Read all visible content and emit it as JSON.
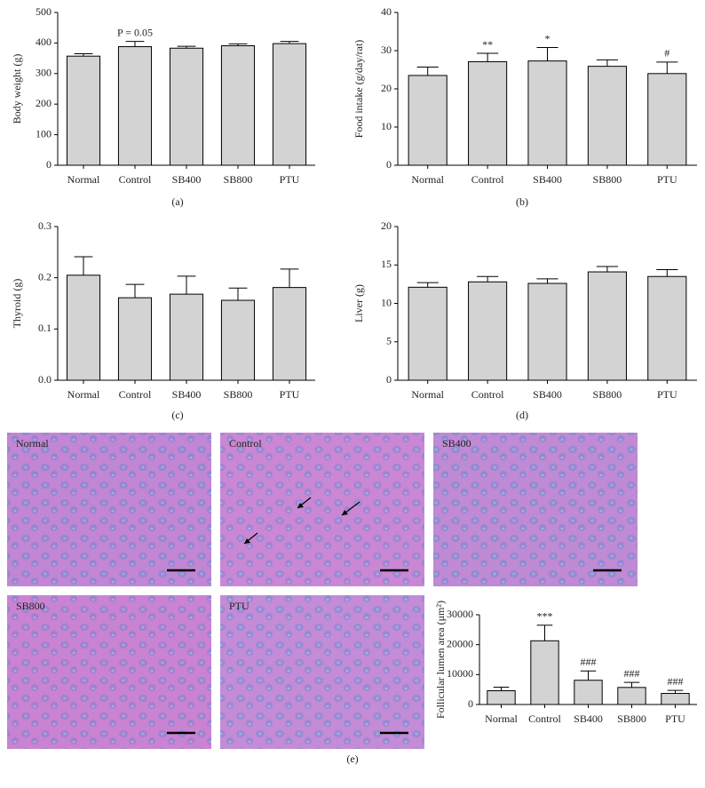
{
  "chart_data": [
    {
      "type": "bar",
      "panel": "(a)",
      "ylabel": "Body weight (g)",
      "categories": [
        "Normal",
        "Control",
        "SB400",
        "SB800",
        "PTU"
      ],
      "values": [
        357,
        388,
        383,
        391,
        398
      ],
      "errors": [
        8,
        17,
        6,
        6,
        7
      ],
      "annotations": [
        null,
        "P = 0.05",
        null,
        null,
        null
      ],
      "color": "#d3d3d3",
      "ylim": [
        0,
        500
      ],
      "yticks": [
        0,
        100,
        200,
        300,
        400,
        500
      ]
    },
    {
      "type": "bar",
      "panel": "(b)",
      "ylabel": "Food intake (g/day/rat)",
      "categories": [
        "Normal",
        "Control",
        "SB400",
        "SB800",
        "PTU"
      ],
      "values": [
        23.5,
        27.1,
        27.3,
        25.9,
        24.0
      ],
      "errors": [
        2.2,
        2.2,
        3.5,
        1.7,
        3.0
      ],
      "annotations": [
        null,
        "**",
        "*",
        null,
        "#"
      ],
      "color": "#d3d3d3",
      "ylim": [
        0,
        40
      ],
      "yticks": [
        0,
        10,
        20,
        30,
        40
      ]
    },
    {
      "type": "bar",
      "panel": "(c)",
      "ylabel": "Thyroid (g)",
      "categories": [
        "Normal",
        "Control",
        "SB400",
        "SB800",
        "PTU"
      ],
      "values": [
        0.205,
        0.161,
        0.168,
        0.156,
        0.181
      ],
      "errors": [
        0.036,
        0.026,
        0.035,
        0.024,
        0.036
      ],
      "annotations": [
        null,
        null,
        null,
        null,
        null
      ],
      "color": "#d3d3d3",
      "ylim": [
        0,
        0.3
      ],
      "yticks": [
        {
          "value": 0,
          "label": "0.0"
        },
        0.1,
        0.2,
        0.3
      ]
    },
    {
      "type": "bar",
      "panel": "(d)",
      "ylabel": "Liver (g)",
      "categories": [
        "Normal",
        "Control",
        "SB400",
        "SB800",
        "PTU"
      ],
      "values": [
        12.1,
        12.8,
        12.6,
        14.1,
        13.5
      ],
      "errors": [
        0.6,
        0.7,
        0.6,
        0.7,
        0.9
      ],
      "annotations": [
        null,
        null,
        null,
        null,
        null
      ],
      "color": "#d3d3d3",
      "ylim": [
        0,
        20
      ],
      "yticks": [
        0,
        5,
        10,
        15,
        20
      ]
    },
    {
      "type": "bar",
      "panel": "(e)",
      "ylabel": "Follicular lumen area (μm²)",
      "categories": [
        "Normal",
        "Control",
        "SB400",
        "SB800",
        "PTU"
      ],
      "values": [
        4600,
        21300,
        8100,
        5700,
        3700
      ],
      "errors": [
        1200,
        5200,
        3100,
        1700,
        1000
      ],
      "annotations": [
        null,
        "***",
        "###",
        "###",
        "###"
      ],
      "color": "#d3d3d3",
      "ylim": [
        0,
        30000
      ],
      "yticks": [
        0,
        10000,
        20000,
        30000
      ]
    }
  ],
  "micrograph_labels": [
    "Normal",
    "Control",
    "SB400",
    "SB800",
    "PTU"
  ]
}
